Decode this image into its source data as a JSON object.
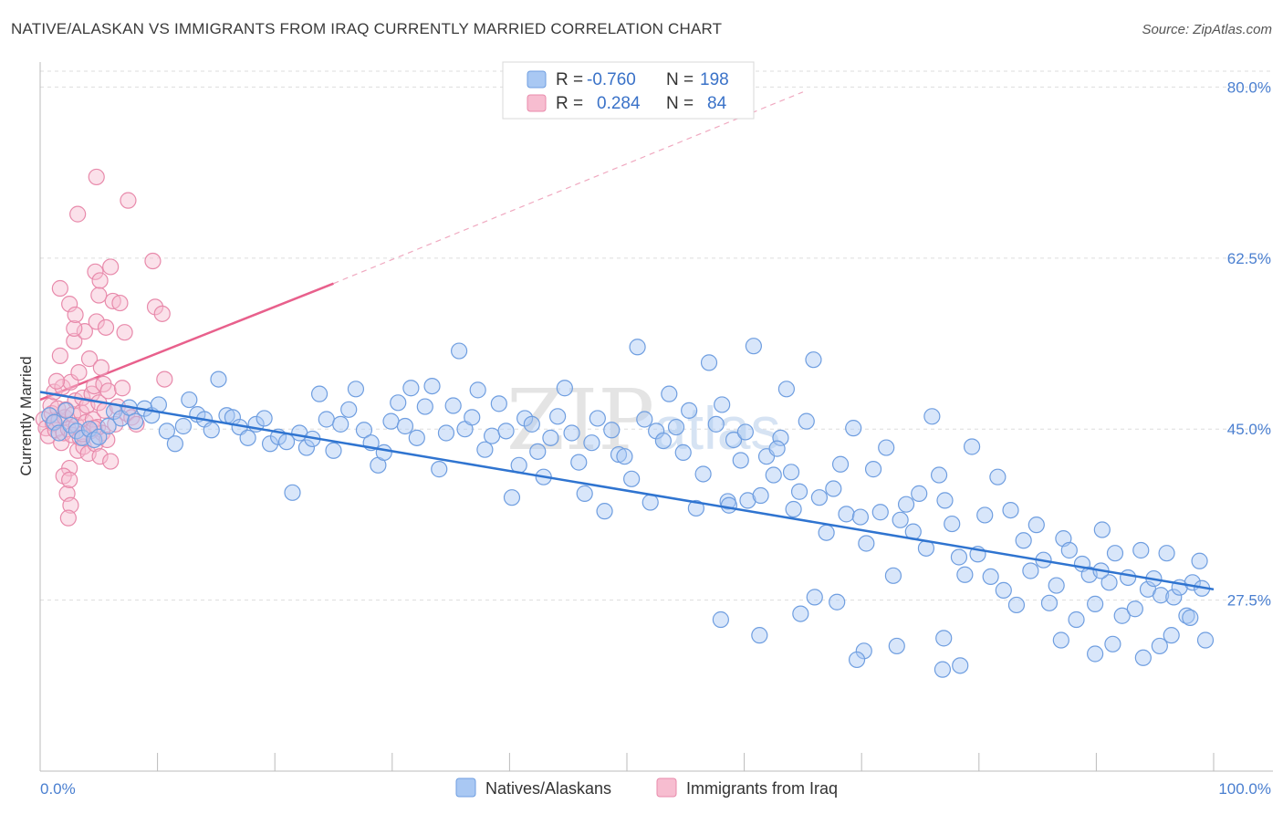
{
  "title": "NATIVE/ALASKAN VS IMMIGRANTS FROM IRAQ CURRENTLY MARRIED CORRELATION CHART",
  "source": "Source: ZipAtlas.com",
  "watermark": {
    "zip": "ZIP",
    "atlas": "atlas"
  },
  "legend_top": [
    {
      "r_label": "R =",
      "r_value": "-0.760",
      "n_label": "N =",
      "n_value": "198",
      "color": "#a9c8f3",
      "stroke": "#6f9ee0"
    },
    {
      "r_label": "R =",
      "r_value": "0.284",
      "n_label": "N =",
      "n_value": "84",
      "color": "#f7bdd0",
      "stroke": "#e88aab"
    }
  ],
  "legend_bottom": [
    {
      "label": "Natives/Alaskans",
      "color": "#a9c8f3",
      "stroke": "#6f9ee0"
    },
    {
      "label": "Immigrants from Iraq",
      "color": "#f7bdd0",
      "stroke": "#e88aab"
    }
  ],
  "chart_data": {
    "type": "scatter",
    "title": "NATIVE/ALASKAN VS IMMIGRANTS FROM IRAQ CURRENTLY MARRIED CORRELATION CHART",
    "xlabel": "",
    "ylabel": "Currently Married",
    "x_tick_labels": [
      "0.0%",
      "100.0%"
    ],
    "y_tick_labels": [
      "27.5%",
      "45.0%",
      "62.5%",
      "80.0%"
    ],
    "y_ticks": [
      27.5,
      45.0,
      62.5,
      80.0
    ],
    "xlim": [
      0,
      100
    ],
    "ylim": [
      10.0,
      82.0
    ],
    "grid": true,
    "series": [
      {
        "name": "Natives/Alaskans",
        "color": "#6f9ee0",
        "fill": "#a9c8f3",
        "trend": {
          "x": [
            0,
            100
          ],
          "y": [
            48.8,
            28.6
          ],
          "color": "#2f74d0"
        },
        "points": [
          [
            0.8,
            46.4
          ],
          [
            1.2,
            45.7
          ],
          [
            1.6,
            44.6
          ],
          [
            2.2,
            46.9
          ],
          [
            2.6,
            45.4
          ],
          [
            3.1,
            44.8
          ],
          [
            3.6,
            44.1
          ],
          [
            4.2,
            45.0
          ],
          [
            4.6,
            43.9
          ],
          [
            5.0,
            44.2
          ],
          [
            5.8,
            45.3
          ],
          [
            6.3,
            46.8
          ],
          [
            6.9,
            46.1
          ],
          [
            7.6,
            47.2
          ],
          [
            8.1,
            45.8
          ],
          [
            8.9,
            47.1
          ],
          [
            9.5,
            46.4
          ],
          [
            10.1,
            47.5
          ],
          [
            10.8,
            44.8
          ],
          [
            11.5,
            43.5
          ],
          [
            12.2,
            45.3
          ],
          [
            12.7,
            48.0
          ],
          [
            13.4,
            46.5
          ],
          [
            14.0,
            46.0
          ],
          [
            14.6,
            44.9
          ],
          [
            15.2,
            50.1
          ],
          [
            15.9,
            46.4
          ],
          [
            16.4,
            46.2
          ],
          [
            17.0,
            45.2
          ],
          [
            17.7,
            44.1
          ],
          [
            18.4,
            45.5
          ],
          [
            19.1,
            46.1
          ],
          [
            19.6,
            43.5
          ],
          [
            20.3,
            44.2
          ],
          [
            21.0,
            43.7
          ],
          [
            21.5,
            38.5
          ],
          [
            22.1,
            44.6
          ],
          [
            22.7,
            43.1
          ],
          [
            23.2,
            44.0
          ],
          [
            23.8,
            48.6
          ],
          [
            24.4,
            46.0
          ],
          [
            25.0,
            42.8
          ],
          [
            25.6,
            45.5
          ],
          [
            26.3,
            47.0
          ],
          [
            26.9,
            49.1
          ],
          [
            27.6,
            44.9
          ],
          [
            28.2,
            43.6
          ],
          [
            28.8,
            41.3
          ],
          [
            29.3,
            42.6
          ],
          [
            29.9,
            45.8
          ],
          [
            30.5,
            47.7
          ],
          [
            31.1,
            45.3
          ],
          [
            31.6,
            49.2
          ],
          [
            32.1,
            44.1
          ],
          [
            32.8,
            47.3
          ],
          [
            33.4,
            49.4
          ],
          [
            34.0,
            40.9
          ],
          [
            34.6,
            44.6
          ],
          [
            35.2,
            47.4
          ],
          [
            35.7,
            53.0
          ],
          [
            36.2,
            45.0
          ],
          [
            36.8,
            46.2
          ],
          [
            37.3,
            49.0
          ],
          [
            37.9,
            42.9
          ],
          [
            38.5,
            44.3
          ],
          [
            39.1,
            47.6
          ],
          [
            39.7,
            44.8
          ],
          [
            40.2,
            38.0
          ],
          [
            40.8,
            41.3
          ],
          [
            41.3,
            46.1
          ],
          [
            41.9,
            45.5
          ],
          [
            42.4,
            42.7
          ],
          [
            42.9,
            40.1
          ],
          [
            43.5,
            44.1
          ],
          [
            44.1,
            46.3
          ],
          [
            44.7,
            49.2
          ],
          [
            45.3,
            44.6
          ],
          [
            45.9,
            41.6
          ],
          [
            46.4,
            38.4
          ],
          [
            47.0,
            43.6
          ],
          [
            47.5,
            46.1
          ],
          [
            48.1,
            36.6
          ],
          [
            48.7,
            44.9
          ],
          [
            49.3,
            42.4
          ],
          [
            49.8,
            42.2
          ],
          [
            50.4,
            39.9
          ],
          [
            50.9,
            53.4
          ],
          [
            51.5,
            46.0
          ],
          [
            52.0,
            37.5
          ],
          [
            52.5,
            44.8
          ],
          [
            53.1,
            43.8
          ],
          [
            53.6,
            48.6
          ],
          [
            54.2,
            45.2
          ],
          [
            54.8,
            42.6
          ],
          [
            55.3,
            46.9
          ],
          [
            55.9,
            36.9
          ],
          [
            56.5,
            40.4
          ],
          [
            57.0,
            51.8
          ],
          [
            57.6,
            45.5
          ],
          [
            58.1,
            47.5
          ],
          [
            58.6,
            37.6
          ],
          [
            59.1,
            43.9
          ],
          [
            59.7,
            41.8
          ],
          [
            60.3,
            37.7
          ],
          [
            60.8,
            53.5
          ],
          [
            61.4,
            38.2
          ],
          [
            61.9,
            42.2
          ],
          [
            62.5,
            40.3
          ],
          [
            63.1,
            44.1
          ],
          [
            63.6,
            49.1
          ],
          [
            64.2,
            36.8
          ],
          [
            64.7,
            38.6
          ],
          [
            65.3,
            45.8
          ],
          [
            65.9,
            52.1
          ],
          [
            66.4,
            38.0
          ],
          [
            67.0,
            34.4
          ],
          [
            67.6,
            38.9
          ],
          [
            68.2,
            41.4
          ],
          [
            68.7,
            36.3
          ],
          [
            69.3,
            45.1
          ],
          [
            69.9,
            36.0
          ],
          [
            70.4,
            33.3
          ],
          [
            71.0,
            40.9
          ],
          [
            71.6,
            36.5
          ],
          [
            72.1,
            43.1
          ],
          [
            72.7,
            30.0
          ],
          [
            73.3,
            35.7
          ],
          [
            73.8,
            37.3
          ],
          [
            74.4,
            34.5
          ],
          [
            74.9,
            38.4
          ],
          [
            75.5,
            32.8
          ],
          [
            76.0,
            46.3
          ],
          [
            76.6,
            40.3
          ],
          [
            77.1,
            37.7
          ],
          [
            77.7,
            35.3
          ],
          [
            78.3,
            31.9
          ],
          [
            78.8,
            30.1
          ],
          [
            79.4,
            43.2
          ],
          [
            79.9,
            32.2
          ],
          [
            80.5,
            36.2
          ],
          [
            81.0,
            29.9
          ],
          [
            81.6,
            40.1
          ],
          [
            82.1,
            28.5
          ],
          [
            82.7,
            36.7
          ],
          [
            83.2,
            27.0
          ],
          [
            83.8,
            33.6
          ],
          [
            84.4,
            30.5
          ],
          [
            84.9,
            35.2
          ],
          [
            85.5,
            31.6
          ],
          [
            86.0,
            27.2
          ],
          [
            86.6,
            29.0
          ],
          [
            87.2,
            33.8
          ],
          [
            87.7,
            32.6
          ],
          [
            88.3,
            25.5
          ],
          [
            88.8,
            31.2
          ],
          [
            89.4,
            30.1
          ],
          [
            89.9,
            27.1
          ],
          [
            90.5,
            34.7
          ],
          [
            91.1,
            29.3
          ],
          [
            91.6,
            32.3
          ],
          [
            92.2,
            25.9
          ],
          [
            92.7,
            29.8
          ],
          [
            93.3,
            26.6
          ],
          [
            93.8,
            32.6
          ],
          [
            94.4,
            28.6
          ],
          [
            94.9,
            29.7
          ],
          [
            95.5,
            28.0
          ],
          [
            96.0,
            32.3
          ],
          [
            96.6,
            27.8
          ],
          [
            97.1,
            28.8
          ],
          [
            97.7,
            25.9
          ],
          [
            98.2,
            29.3
          ],
          [
            98.8,
            31.5
          ],
          [
            99.3,
            23.4
          ],
          [
            76.9,
            20.4
          ],
          [
            78.4,
            20.8
          ],
          [
            77.0,
            23.6
          ],
          [
            73.0,
            22.8
          ],
          [
            70.2,
            22.3
          ],
          [
            69.6,
            21.4
          ],
          [
            58.0,
            25.5
          ],
          [
            61.3,
            23.9
          ],
          [
            64.8,
            26.1
          ],
          [
            66.0,
            27.8
          ],
          [
            67.9,
            27.3
          ],
          [
            87.0,
            23.4
          ],
          [
            89.9,
            22.0
          ],
          [
            94.0,
            21.6
          ],
          [
            95.4,
            22.8
          ],
          [
            96.4,
            23.9
          ],
          [
            90.4,
            30.5
          ],
          [
            91.4,
            23.0
          ],
          [
            98.0,
            25.7
          ],
          [
            99.0,
            28.7
          ],
          [
            60.1,
            44.7
          ],
          [
            58.7,
            37.2
          ],
          [
            62.8,
            43.0
          ],
          [
            64.0,
            40.6
          ]
        ]
      },
      {
        "name": "Immigrants from Iraq",
        "color": "#e88aab",
        "fill": "#f7bdd0",
        "trend": {
          "x": [
            0,
            25
          ],
          "y": [
            48.0,
            59.9
          ],
          "color": "#e8608c",
          "dashed_to": [
            65,
            79.5
          ]
        },
        "points": [
          [
            0.3,
            46.0
          ],
          [
            0.5,
            45.1
          ],
          [
            0.7,
            44.3
          ],
          [
            0.9,
            47.4
          ],
          [
            1.0,
            46.6
          ],
          [
            1.1,
            45.6
          ],
          [
            1.2,
            48.8
          ],
          [
            1.3,
            44.9
          ],
          [
            1.5,
            47.1
          ],
          [
            1.6,
            45.9
          ],
          [
            1.7,
            52.5
          ],
          [
            1.8,
            43.6
          ],
          [
            1.9,
            49.3
          ],
          [
            2.0,
            44.6
          ],
          [
            2.1,
            46.2
          ],
          [
            2.2,
            47.0
          ],
          [
            2.3,
            38.4
          ],
          [
            2.4,
            45.0
          ],
          [
            2.5,
            41.0
          ],
          [
            2.6,
            49.8
          ],
          [
            2.7,
            44.4
          ],
          [
            2.8,
            46.5
          ],
          [
            2.9,
            54.0
          ],
          [
            3.0,
            47.9
          ],
          [
            3.1,
            45.4
          ],
          [
            3.2,
            42.8
          ],
          [
            3.3,
            50.8
          ],
          [
            3.4,
            44.1
          ],
          [
            3.5,
            46.7
          ],
          [
            3.6,
            48.2
          ],
          [
            3.7,
            43.2
          ],
          [
            3.8,
            55.0
          ],
          [
            3.9,
            45.7
          ],
          [
            4.0,
            47.4
          ],
          [
            4.1,
            42.5
          ],
          [
            4.2,
            52.2
          ],
          [
            4.3,
            44.8
          ],
          [
            4.4,
            48.6
          ],
          [
            4.5,
            46.0
          ],
          [
            4.6,
            49.4
          ],
          [
            4.7,
            43.5
          ],
          [
            4.8,
            56.0
          ],
          [
            4.9,
            45.2
          ],
          [
            5.0,
            47.7
          ],
          [
            5.1,
            42.2
          ],
          [
            5.2,
            51.3
          ],
          [
            5.3,
            44.6
          ],
          [
            5.4,
            49.6
          ],
          [
            5.5,
            46.9
          ],
          [
            5.6,
            55.4
          ],
          [
            5.7,
            43.9
          ],
          [
            5.8,
            48.9
          ],
          [
            6.0,
            41.7
          ],
          [
            6.2,
            58.1
          ],
          [
            6.4,
            45.5
          ],
          [
            6.6,
            47.3
          ],
          [
            6.8,
            57.9
          ],
          [
            7.0,
            49.2
          ],
          [
            7.2,
            54.9
          ],
          [
            7.4,
            46.6
          ],
          [
            7.8,
            46.2
          ],
          [
            8.2,
            45.5
          ],
          [
            1.4,
            49.9
          ],
          [
            2.0,
            40.2
          ],
          [
            2.6,
            37.2
          ],
          [
            1.7,
            59.4
          ],
          [
            2.5,
            57.8
          ],
          [
            2.9,
            55.3
          ],
          [
            4.6,
            45.1
          ],
          [
            3.6,
            44.5
          ],
          [
            6.0,
            61.6
          ],
          [
            4.7,
            61.1
          ],
          [
            3.0,
            56.7
          ],
          [
            5.0,
            58.7
          ],
          [
            7.5,
            68.4
          ],
          [
            2.5,
            39.8
          ],
          [
            2.4,
            35.9
          ],
          [
            3.2,
            67.0
          ],
          [
            4.8,
            70.8
          ],
          [
            5.1,
            60.2
          ],
          [
            9.6,
            62.2
          ],
          [
            9.8,
            57.5
          ],
          [
            10.4,
            56.8
          ],
          [
            10.6,
            50.1
          ]
        ]
      }
    ]
  }
}
